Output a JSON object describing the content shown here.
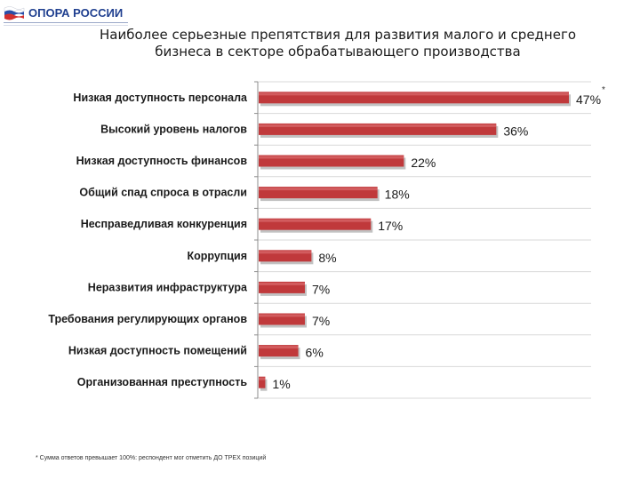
{
  "logo": {
    "text": "ОПОРА РОССИИ"
  },
  "title": "Наиболее серьезные препятствия для развития малого и среднего\nбизнеса в секторе обрабатывающего производства",
  "note_mark": "*",
  "footnote": "* Сумма ответов превышает 100%: респондент мог отметить ДО ТРЕХ позиций",
  "colors": {
    "bar": "#c0393b",
    "bar_shadow": "#8f8f8f",
    "grid": "#d9d9d9",
    "axis": "#8c8c8c"
  },
  "chart_data": {
    "type": "bar",
    "orientation": "horizontal",
    "title": "Наиболее серьезные препятствия для развития малого и среднего бизнеса в секторе обрабатывающего производства",
    "xlabel": "",
    "ylabel": "",
    "xlim": [
      0,
      50
    ],
    "grid": true,
    "categories": [
      "Низкая доступность персонала",
      "Высокий уровень налогов",
      "Низкая доступность финансов",
      "Общий спад спроса в отрасли",
      "Несправедливая конкуренция",
      "Коррупция",
      "Неразвития инфраструктура",
      "Требования регулирующих органов",
      "Низкая доступность помещений",
      "Организованная преступность"
    ],
    "values": [
      47,
      36,
      22,
      18,
      17,
      8,
      7,
      7,
      6,
      1
    ],
    "value_labels": [
      "47%",
      "36%",
      "22%",
      "18%",
      "17%",
      "8%",
      "7%",
      "7%",
      "6%",
      "1%"
    ]
  }
}
